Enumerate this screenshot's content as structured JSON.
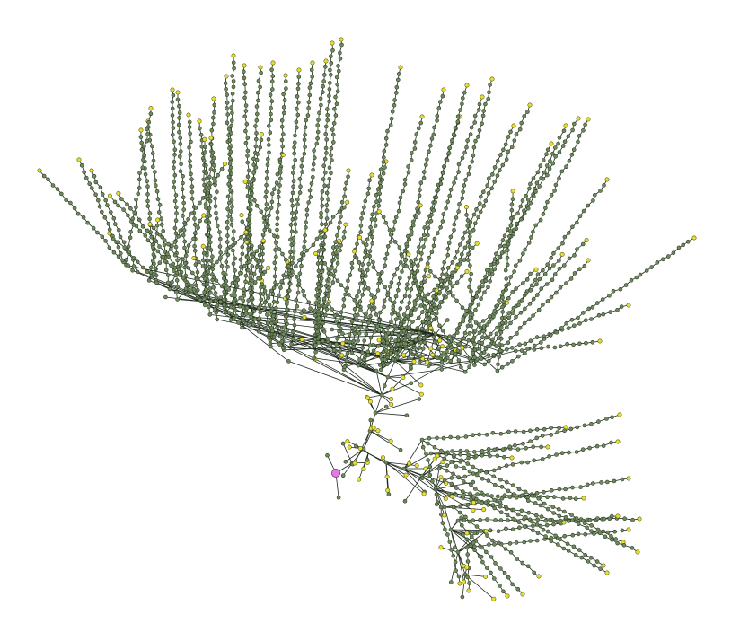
{
  "diagram": {
    "type": "tree-network",
    "colors": {
      "background": "#ffffff",
      "edge": "#1e2a1e",
      "node_fill": "#6f8a5c",
      "node_stroke": "#2d3b24",
      "leaf_fill": "#e6e033",
      "leaf_stroke": "#5a5a10",
      "root_fill": "#e07ce0",
      "root_stroke": "#7a2f7a"
    },
    "shapes": {
      "node": "circle",
      "leaf": "circle",
      "root": "circle"
    }
  }
}
